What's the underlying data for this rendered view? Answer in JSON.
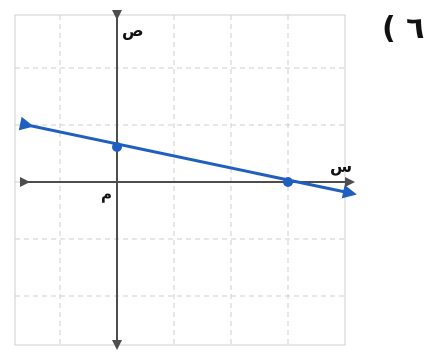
{
  "problem_number": "( ٦",
  "axes": {
    "x_label": "س",
    "y_label": "ص",
    "origin_label": "م"
  },
  "line": {
    "points_shown": [
      [
        0,
        1
      ],
      [
        3,
        0
      ]
    ],
    "arrows_both_ends": true
  },
  "grid": {
    "x_min": -2,
    "x_max": 5,
    "y_min": -4,
    "y_max": 3,
    "dashed": true
  },
  "colors": {
    "line": "#1f5fbf",
    "point": "#1f5fbf",
    "axis": "#4d4d4d",
    "grid": "#cfcfcf",
    "text": "#111111"
  }
}
